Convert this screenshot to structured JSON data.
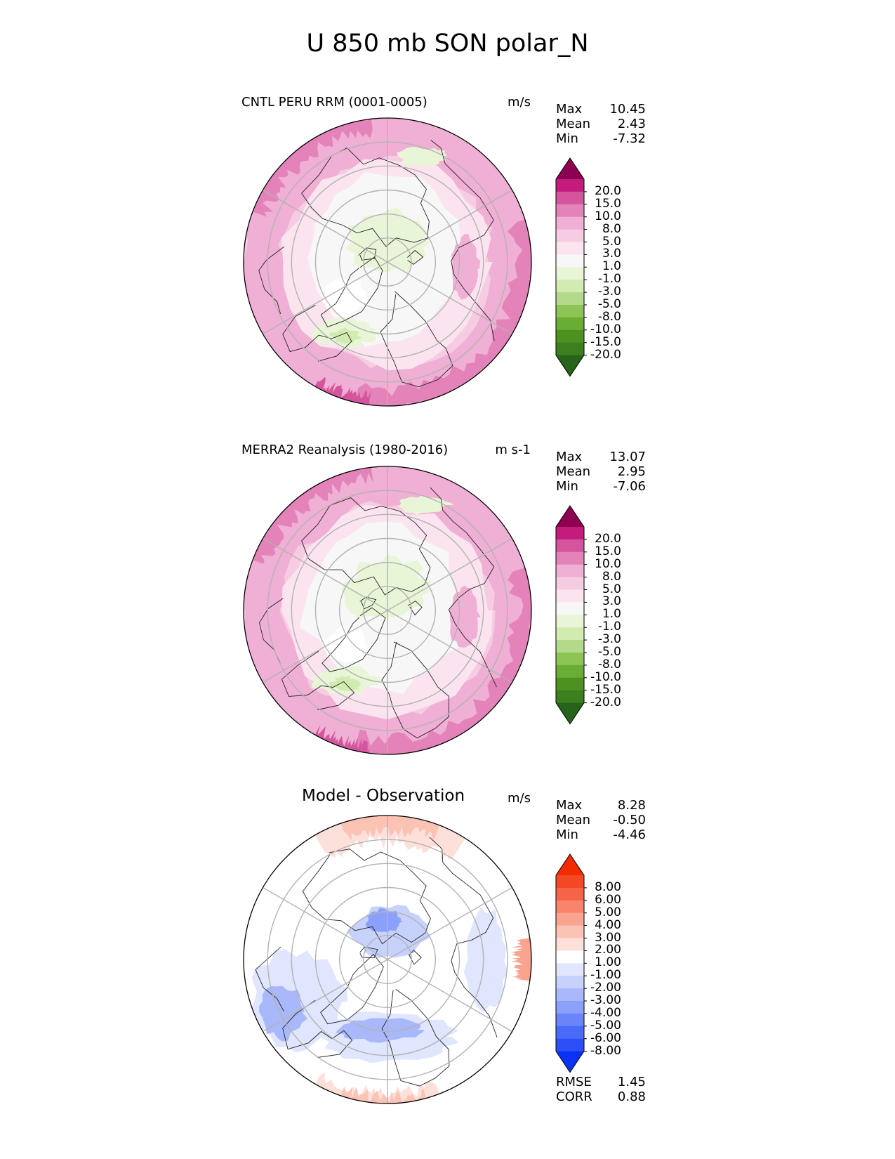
{
  "figure": {
    "title": "U 850 mb SON polar_N"
  },
  "panels": [
    {
      "subtitle": "CNTL PERU RRM (0001-0005)",
      "units": "m/s",
      "stats": [
        {
          "label": "Max",
          "value": "10.45"
        },
        {
          "label": "Mean",
          "value": "2.43"
        },
        {
          "label": "Min",
          "value": "-7.32"
        }
      ],
      "colorbar_levels": [
        "20.0",
        "15.0",
        "10.0",
        "8.0",
        "5.0",
        "3.0",
        "1.0",
        "-1.0",
        "-3.0",
        "-5.0",
        "-8.0",
        "-10.0",
        "-15.0",
        "-20.0"
      ]
    },
    {
      "subtitle": "MERRA2 Reanalysis (1980-2016)",
      "units": "m s-1",
      "stats": [
        {
          "label": "Max",
          "value": "13.07"
        },
        {
          "label": "Mean",
          "value": "2.95"
        },
        {
          "label": "Min",
          "value": "-7.06"
        }
      ],
      "colorbar_levels": [
        "20.0",
        "15.0",
        "10.0",
        "8.0",
        "5.0",
        "3.0",
        "1.0",
        "-1.0",
        "-3.0",
        "-5.0",
        "-8.0",
        "-10.0",
        "-15.0",
        "-20.0"
      ]
    },
    {
      "subtitle": "Model - Observation",
      "units": "m/s",
      "stats": [
        {
          "label": "Max",
          "value": "8.28"
        },
        {
          "label": "Mean",
          "value": "-0.50"
        },
        {
          "label": "Min",
          "value": "-4.46"
        }
      ],
      "colorbar_levels": [
        "8.00",
        "6.00",
        "5.00",
        "4.00",
        "3.00",
        "2.00",
        "1.00",
        "-1.00",
        "-2.00",
        "-3.00",
        "-4.00",
        "-5.00",
        "-6.00",
        "-8.00"
      ],
      "error_stats": [
        {
          "label": "RMSE",
          "value": "1.45"
        },
        {
          "label": "CORR",
          "value": "0.88"
        }
      ]
    }
  ],
  "chart_data": [
    {
      "type": "heatmap",
      "projection": "north polar stereographic",
      "title": "CNTL PERU RRM (0001-0005)",
      "units": "m/s",
      "stats": {
        "max": 10.45,
        "mean": 2.43,
        "min": -7.32
      },
      "levels": [
        -20,
        -15,
        -10,
        -8,
        -5,
        -3,
        -1,
        1,
        3,
        5,
        8,
        10,
        15,
        20
      ],
      "colormap": [
        "#276419",
        "#3b7f1f",
        "#4d9221",
        "#6aad34",
        "#8cc456",
        "#b3d98a",
        "#d2ebb1",
        "#e8f5d6",
        "#f7f7f7",
        "#fbe4ef",
        "#f6cce2",
        "#f0afd4",
        "#e383b9",
        "#d4559d",
        "#c51b7d",
        "#8e0152"
      ],
      "grid": true
    },
    {
      "type": "heatmap",
      "projection": "north polar stereographic",
      "title": "MERRA2 Reanalysis (1980-2016)",
      "units": "m s-1",
      "stats": {
        "max": 13.07,
        "mean": 2.95,
        "min": -7.06
      },
      "levels": [
        -20,
        -15,
        -10,
        -8,
        -5,
        -3,
        -1,
        1,
        3,
        5,
        8,
        10,
        15,
        20
      ],
      "colormap": [
        "#276419",
        "#3b7f1f",
        "#4d9221",
        "#6aad34",
        "#8cc456",
        "#b3d98a",
        "#d2ebb1",
        "#e8f5d6",
        "#f7f7f7",
        "#fbe4ef",
        "#f6cce2",
        "#f0afd4",
        "#e383b9",
        "#d4559d",
        "#c51b7d",
        "#8e0152"
      ],
      "grid": true
    },
    {
      "type": "heatmap",
      "projection": "north polar stereographic",
      "title": "Model - Observation",
      "units": "m/s",
      "stats": {
        "max": 8.28,
        "mean": -0.5,
        "min": -4.46,
        "rmse": 1.45,
        "corr": 0.88
      },
      "levels": [
        -8,
        -6,
        -5,
        -4,
        -3,
        -2,
        -1,
        1,
        2,
        3,
        4,
        5,
        6,
        8
      ],
      "colormap": [
        "#0a32f5",
        "#2a4ff7",
        "#4a6bf8",
        "#6985f9",
        "#8aa0fa",
        "#a8b8fb",
        "#c6d1fc",
        "#dfe6fd",
        "#ffffff",
        "#fde0da",
        "#fbc3b4",
        "#f9a48f",
        "#f8846b",
        "#f66447",
        "#f44724",
        "#f42a00"
      ],
      "grid": true
    }
  ]
}
